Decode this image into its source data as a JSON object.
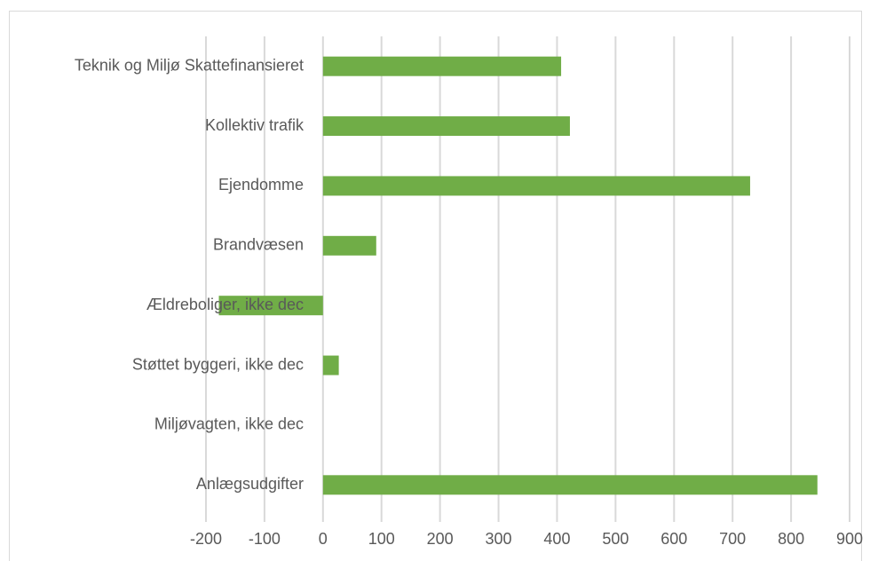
{
  "chart_data": {
    "type": "bar",
    "orientation": "horizontal",
    "categories": [
      "Teknik og Miljø Skattefinansieret",
      "Kollektiv trafik",
      "Ejendomme",
      "Brandvæsen",
      "Ældreboliger, ikke dec",
      "Støttet byggeri, ikke dec",
      "Miljøvagten, ikke dec",
      "Anlægsudgifter"
    ],
    "values": [
      407,
      422,
      730,
      91,
      -178,
      27,
      0,
      845
    ],
    "color": "#70ad47",
    "xlim": [
      -200,
      900
    ],
    "xticks": [
      -200,
      -100,
      0,
      100,
      200,
      300,
      400,
      500,
      600,
      700,
      800,
      900
    ],
    "grid": true
  }
}
